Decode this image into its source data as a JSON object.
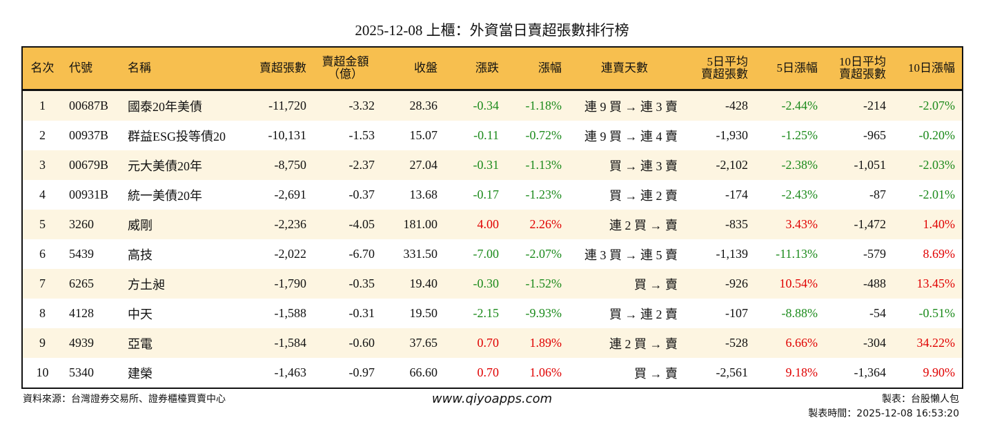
{
  "title": "2025-12-08 上櫃：外資當日賣超張數排行榜",
  "headers": {
    "rank": "名次",
    "code": "代號",
    "name": "名稱",
    "sell": "賣超張數",
    "amount_l1": "賣超金額",
    "amount_l2": "（億）",
    "close": "收盤",
    "change": "漲跌",
    "pct": "漲幅",
    "streak": "連賣天數",
    "avg5_l1": "5日平均",
    "avg5_l2": "賣超張數",
    "pct5": "5日漲幅",
    "avg10_l1": "10日平均",
    "avg10_l2": "賣超張數",
    "pct10": "10日漲幅"
  },
  "colors": {
    "header_bg": "#f7bf4f",
    "stripe_bg": "#fdf5e1",
    "up": "#e00000",
    "down": "#1b8a1b"
  },
  "rows": [
    {
      "rank": "1",
      "code": "00687B",
      "name": "國泰20年美債",
      "sell": "-11,720",
      "amount": "-3.32",
      "close": "28.36",
      "change": "-0.34",
      "pct": "-1.18%",
      "streak": "連 9 買 → 連 3 賣",
      "avg5": "-428",
      "pct5": "-2.44%",
      "avg10": "-214",
      "pct10": "-2.07%"
    },
    {
      "rank": "2",
      "code": "00937B",
      "name": "群益ESG投等債20",
      "sell": "-10,131",
      "amount": "-1.53",
      "close": "15.07",
      "change": "-0.11",
      "pct": "-0.72%",
      "streak": "連 9 買 → 連 4 賣",
      "avg5": "-1,930",
      "pct5": "-1.25%",
      "avg10": "-965",
      "pct10": "-0.20%"
    },
    {
      "rank": "3",
      "code": "00679B",
      "name": "元大美債20年",
      "sell": "-8,750",
      "amount": "-2.37",
      "close": "27.04",
      "change": "-0.31",
      "pct": "-1.13%",
      "streak": "買 → 連 3 賣",
      "avg5": "-2,102",
      "pct5": "-2.38%",
      "avg10": "-1,051",
      "pct10": "-2.03%"
    },
    {
      "rank": "4",
      "code": "00931B",
      "name": "統一美債20年",
      "sell": "-2,691",
      "amount": "-0.37",
      "close": "13.68",
      "change": "-0.17",
      "pct": "-1.23%",
      "streak": "買 → 連 2 賣",
      "avg5": "-174",
      "pct5": "-2.43%",
      "avg10": "-87",
      "pct10": "-2.01%"
    },
    {
      "rank": "5",
      "code": "3260",
      "name": "威剛",
      "sell": "-2,236",
      "amount": "-4.05",
      "close": "181.00",
      "change": "4.00",
      "pct": "2.26%",
      "streak": "連 2 買 → 賣",
      "avg5": "-835",
      "pct5": "3.43%",
      "avg10": "-1,472",
      "pct10": "1.40%"
    },
    {
      "rank": "6",
      "code": "5439",
      "name": "高技",
      "sell": "-2,022",
      "amount": "-6.70",
      "close": "331.50",
      "change": "-7.00",
      "pct": "-2.07%",
      "streak": "連 3 買 → 連 5 賣",
      "avg5": "-1,139",
      "pct5": "-11.13%",
      "avg10": "-579",
      "pct10": "8.69%"
    },
    {
      "rank": "7",
      "code": "6265",
      "name": "方土昶",
      "sell": "-1,790",
      "amount": "-0.35",
      "close": "19.40",
      "change": "-0.30",
      "pct": "-1.52%",
      "streak": "買 → 賣",
      "avg5": "-926",
      "pct5": "10.54%",
      "avg10": "-488",
      "pct10": "13.45%"
    },
    {
      "rank": "8",
      "code": "4128",
      "name": "中天",
      "sell": "-1,588",
      "amount": "-0.31",
      "close": "19.50",
      "change": "-2.15",
      "pct": "-9.93%",
      "streak": "買 → 連 2 賣",
      "avg5": "-107",
      "pct5": "-8.88%",
      "avg10": "-54",
      "pct10": "-0.51%"
    },
    {
      "rank": "9",
      "code": "4939",
      "name": "亞電",
      "sell": "-1,584",
      "amount": "-0.60",
      "close": "37.65",
      "change": "0.70",
      "pct": "1.89%",
      "streak": "連 2 買 → 賣",
      "avg5": "-528",
      "pct5": "6.66%",
      "avg10": "-304",
      "pct10": "34.22%"
    },
    {
      "rank": "10",
      "code": "5340",
      "name": "建榮",
      "sell": "-1,463",
      "amount": "-0.97",
      "close": "66.60",
      "change": "0.70",
      "pct": "1.06%",
      "streak": "買 → 賣",
      "avg5": "-2,561",
      "pct5": "9.18%",
      "avg10": "-1,364",
      "pct10": "9.90%"
    }
  ],
  "footer": {
    "source": "資料來源：台灣證券交易所、證券櫃檯買賣中心",
    "url": "www.qiyoapps.com",
    "maker": "製表：台股懶人包",
    "time": "製表時間：2025-12-08 16:53:20"
  }
}
